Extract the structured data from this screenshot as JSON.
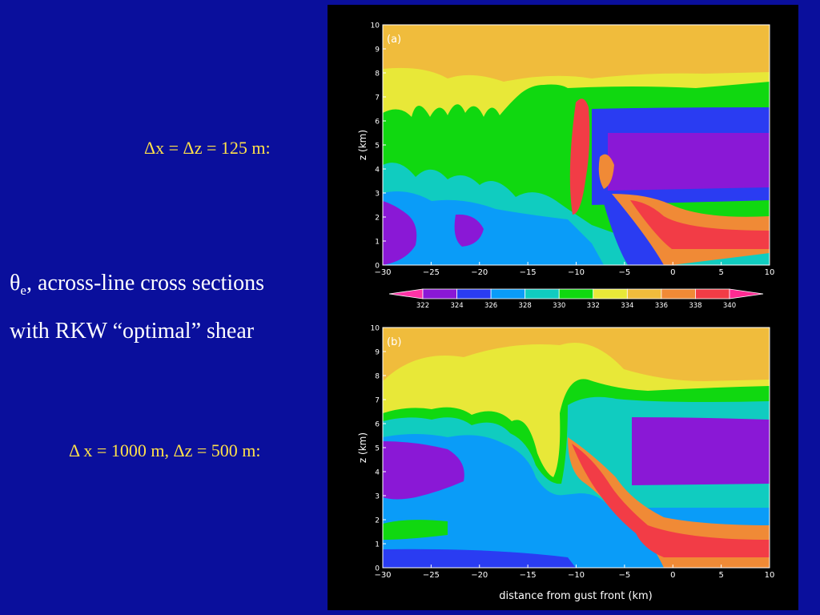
{
  "slide": {
    "resolution_a": "Δx = Δz = 125 m:",
    "resolution_b": "Δ x = 1000 m, Δz = 500 m:",
    "title_symbol": "θ",
    "title_subscript": "e",
    "title_rest": ", across-line cross sections",
    "title_line2": "with RKW “optimal” shear"
  },
  "chart_data": [
    {
      "type": "heatmap",
      "panel_label": "(a)",
      "xlabel": "",
      "ylabel": "z (km)",
      "xlim": [
        -30,
        10
      ],
      "ylim": [
        0,
        10
      ],
      "x_ticks": [
        -30,
        -25,
        -20,
        -15,
        -10,
        -5,
        0,
        5,
        10
      ],
      "y_ticks": [
        0,
        1,
        2,
        3,
        4,
        5,
        6,
        7,
        8,
        9,
        10
      ]
    },
    {
      "type": "heatmap",
      "panel_label": "(b)",
      "xlabel": "distance from gust front (km)",
      "ylabel": "z (km)",
      "xlim": [
        -30,
        10
      ],
      "ylim": [
        0,
        10
      ],
      "x_ticks": [
        -30,
        -25,
        -20,
        -15,
        -10,
        -5,
        0,
        5,
        10
      ],
      "y_ticks": [
        0,
        1,
        2,
        3,
        4,
        5,
        6,
        7,
        8,
        9,
        10
      ]
    }
  ],
  "colorbar": {
    "ticks": [
      "322",
      "324",
      "326",
      "328",
      "330",
      "332",
      "334",
      "336",
      "338",
      "340"
    ],
    "colors": [
      "#ff33a6",
      "#8a18d6",
      "#2a3cf2",
      "#0a9cf8",
      "#10ccc0",
      "#10d810",
      "#e8e838",
      "#f0bc3c",
      "#f08a36",
      "#f23c46",
      "#ff2a92"
    ]
  }
}
